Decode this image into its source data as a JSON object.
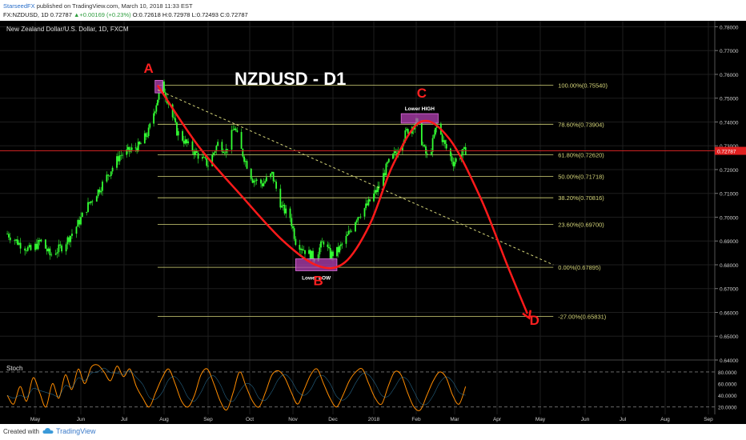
{
  "header": {
    "publisher": "StarseedFX",
    "published_text": "published on TradingView.com, March 10, 2018 11:33 EST",
    "symbol": "FX:NZDUSD, 1D",
    "last": "0.72787",
    "change": "+0.00169 (+0.23%)",
    "ohlc": {
      "o": "O:0.72618",
      "h": "H:0.72978",
      "l": "L:0.72493",
      "c": "C:0.72787"
    }
  },
  "chart_data": {
    "type": "line",
    "instrument": "New Zealand Dollar/U.S. Dollar, 1D, FXCM",
    "title": "NZDUSD - D1",
    "y_axis": {
      "min": 0.64,
      "max": 0.7825,
      "ticks": [
        "0.78000",
        "0.77000",
        "0.76000",
        "0.75000",
        "0.74000",
        "0.73000",
        "0.72000",
        "0.71000",
        "0.70000",
        "0.69000",
        "0.68000",
        "0.67000",
        "0.66000",
        "0.65000",
        "0.64000"
      ],
      "tick_values": [
        0.78,
        0.77,
        0.76,
        0.75,
        0.74,
        0.73,
        0.72,
        0.71,
        0.7,
        0.69,
        0.68,
        0.67,
        0.66,
        0.65,
        0.64
      ],
      "last_price_label": "0.72787",
      "last_price": 0.72787
    },
    "x_axis": {
      "labels": [
        "May",
        "Jun",
        "Jul",
        "Aug",
        "Sep",
        "Oct",
        "Nov",
        "Dec",
        "2018",
        "Feb",
        "Mar",
        "Apr",
        "May",
        "Jun",
        "Jul",
        "Aug",
        "Sep"
      ],
      "start": "2017-04-12",
      "end": "2018-09-15"
    },
    "price_path": [
      [
        "2017-04-12",
        0.693
      ],
      [
        "2017-04-20",
        0.689
      ],
      [
        "2017-04-28",
        0.686
      ],
      [
        "2017-05-05",
        0.69
      ],
      [
        "2017-05-11",
        0.684
      ],
      [
        "2017-05-20",
        0.688
      ],
      [
        "2017-05-28",
        0.695
      ],
      [
        "2017-06-06",
        0.705
      ],
      [
        "2017-06-14",
        0.712
      ],
      [
        "2017-06-20",
        0.718
      ],
      [
        "2017-06-28",
        0.726
      ],
      [
        "2017-07-06",
        0.728
      ],
      [
        "2017-07-13",
        0.73
      ],
      [
        "2017-07-20",
        0.736
      ],
      [
        "2017-07-27",
        0.75
      ],
      [
        "2017-07-31",
        0.7554
      ],
      [
        "2017-08-04",
        0.748
      ],
      [
        "2017-08-10",
        0.736
      ],
      [
        "2017-08-18",
        0.73
      ],
      [
        "2017-08-25",
        0.726
      ],
      [
        "2017-09-01",
        0.722
      ],
      [
        "2017-09-08",
        0.731
      ],
      [
        "2017-09-14",
        0.728
      ],
      [
        "2017-09-20",
        0.738
      ],
      [
        "2017-09-25",
        0.728
      ],
      [
        "2017-10-03",
        0.716
      ],
      [
        "2017-10-10",
        0.714
      ],
      [
        "2017-10-17",
        0.718
      ],
      [
        "2017-10-24",
        0.704
      ],
      [
        "2017-10-30",
        0.7
      ],
      [
        "2017-11-03",
        0.69
      ],
      [
        "2017-11-10",
        0.686
      ],
      [
        "2017-11-17",
        0.683
      ],
      [
        "2017-11-24",
        0.69
      ],
      [
        "2017-11-29",
        0.684
      ],
      [
        "2017-12-05",
        0.686
      ],
      [
        "2017-12-12",
        0.692
      ],
      [
        "2017-12-19",
        0.7
      ],
      [
        "2017-12-27",
        0.705
      ],
      [
        "2018-01-04",
        0.712
      ],
      [
        "2018-01-11",
        0.722
      ],
      [
        "2018-01-18",
        0.728
      ],
      [
        "2018-01-25",
        0.736
      ],
      [
        "2018-02-01",
        0.74
      ],
      [
        "2018-02-07",
        0.728
      ],
      [
        "2018-02-10",
        0.724
      ],
      [
        "2018-02-16",
        0.739
      ],
      [
        "2018-02-22",
        0.73
      ],
      [
        "2018-02-28",
        0.723
      ],
      [
        "2018-03-05",
        0.726
      ],
      [
        "2018-03-09",
        0.728
      ]
    ],
    "fibonacci": {
      "levels": [
        {
          "label": "100.00%(0.75540)",
          "value": 0.7554
        },
        {
          "label": "78.60%(0.73904)",
          "value": 0.73904
        },
        {
          "label": "61.80%(0.72620)",
          "value": 0.7262
        },
        {
          "label": "50.00%(0.71718)",
          "value": 0.71718
        },
        {
          "label": "38.20%(0.70816)",
          "value": 0.70816
        },
        {
          "label": "23.60%(0.69700)",
          "value": 0.697
        },
        {
          "label": "0.00%(0.67895)",
          "value": 0.67895
        },
        {
          "label": "-27.00%(0.65831)",
          "value": 0.65831
        }
      ],
      "start": "2017-07-27",
      "end": "2018-05-10"
    },
    "annotations": {
      "points": [
        {
          "label": "A",
          "date": "2017-07-20",
          "value": 0.7607
        },
        {
          "label": "B",
          "date": "2017-11-20",
          "value": 0.6715
        },
        {
          "label": "C",
          "date": "2018-02-05",
          "value": 0.7502
        },
        {
          "label": "D",
          "date": "2018-04-27",
          "value": 0.6548
        }
      ],
      "zones": [
        {
          "text": "",
          "date_start": "2017-07-25",
          "date_end": "2017-07-31",
          "top": 0.7575,
          "bottom": 0.7522
        },
        {
          "text": "Lower HIGH",
          "date_start": "2018-01-21",
          "date_end": "2018-02-17",
          "top": 0.7435,
          "bottom": 0.7395
        },
        {
          "text": "Lower LOW",
          "date_start": "2017-11-03",
          "date_end": "2017-12-04",
          "top": 0.6825,
          "bottom": 0.6775
        }
      ],
      "projection": [
        [
          "2017-07-27",
          0.7554
        ],
        [
          "2017-08-25",
          0.73
        ],
        [
          "2017-09-25",
          0.709
        ],
        [
          "2017-10-25",
          0.69
        ],
        [
          "2017-11-20",
          0.6795
        ],
        [
          "2017-12-10",
          0.681
        ],
        [
          "2017-12-29",
          0.697
        ],
        [
          "2018-01-15",
          0.722
        ],
        [
          "2018-02-04",
          0.74
        ],
        [
          "2018-02-25",
          0.733
        ],
        [
          "2018-03-20",
          0.708
        ],
        [
          "2018-04-08",
          0.68
        ],
        [
          "2018-04-22",
          0.6595
        ]
      ],
      "trendline": [
        [
          "2017-07-27",
          0.7535
        ],
        [
          "2018-05-10",
          0.68
        ]
      ]
    },
    "oscillator": {
      "name": "Stoch",
      "ticks": [
        "80.0000",
        "60.0000",
        "40.0000",
        "20.0000"
      ],
      "tick_values": [
        80,
        60,
        40,
        20
      ],
      "range": [
        10,
        95
      ],
      "k_values": [
        40,
        25,
        55,
        30,
        70,
        45,
        20,
        60,
        35,
        75,
        50,
        85,
        60,
        88,
        92,
        80,
        65,
        90,
        72,
        85,
        55,
        35,
        20,
        45,
        70,
        85,
        60,
        30,
        20,
        40,
        75,
        85,
        60,
        30,
        15,
        45,
        80,
        55,
        30,
        20,
        45,
        75,
        82,
        70,
        45,
        25,
        50,
        75,
        85,
        60,
        35,
        20,
        40,
        65,
        80,
        85,
        60,
        35,
        25,
        55,
        80,
        75,
        45,
        20,
        15,
        40,
        65,
        80,
        70,
        40,
        25,
        55
      ]
    },
    "colors": {
      "background": "#000000",
      "candle": "#33ff33",
      "projection": "#ff1a1a",
      "fib": "#d6d67a",
      "zone": "#b440b4",
      "stoch_k": "#ff8c00",
      "grid": "#1e1e1e"
    }
  },
  "footer": {
    "created_with": "Created with",
    "brand": "TradingView"
  }
}
